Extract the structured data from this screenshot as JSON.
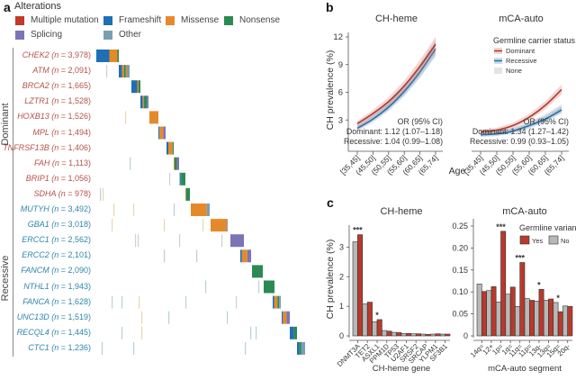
{
  "panel_a": {
    "letter": "a",
    "legend_title": "Alterations",
    "legend": [
      {
        "label": "Multiple mutation",
        "color": "#c0392b"
      },
      {
        "label": "Frameshift",
        "color": "#1f6fb4"
      },
      {
        "label": "Missense",
        "color": "#e58a2b"
      },
      {
        "label": "Nonsense",
        "color": "#2a8a52"
      },
      {
        "label": "Splicing",
        "color": "#7b74b7"
      },
      {
        "label": "Other",
        "color": "#7a9eb2"
      }
    ],
    "groups": [
      {
        "label": "Dominant",
        "color": "#b5524a"
      },
      {
        "label": "Recessive",
        "color": "#2e86ab"
      }
    ],
    "genes": [
      {
        "gene": "CHEK2",
        "n": "3,978",
        "group": "Dominant"
      },
      {
        "gene": "ATM",
        "n": "2,091",
        "group": "Dominant"
      },
      {
        "gene": "BRCA2",
        "n": "1,665",
        "group": "Dominant"
      },
      {
        "gene": "LZTR1",
        "n": "1,528",
        "group": "Dominant"
      },
      {
        "gene": "HOXB13",
        "n": "1,526",
        "group": "Dominant"
      },
      {
        "gene": "MPL",
        "n": "1,494",
        "group": "Dominant"
      },
      {
        "gene": "TNFRSF13B",
        "n": "1,406",
        "group": "Dominant"
      },
      {
        "gene": "FAH",
        "n": "1,113",
        "group": "Dominant"
      },
      {
        "gene": "BRIP1",
        "n": "1,056",
        "group": "Dominant"
      },
      {
        "gene": "SDHA",
        "n": "978",
        "group": "Dominant"
      },
      {
        "gene": "MUTYH",
        "n": "3,492",
        "group": "Recessive"
      },
      {
        "gene": "GBA1",
        "n": "3,018",
        "group": "Recessive"
      },
      {
        "gene": "ERCC1",
        "n": "2,562",
        "group": "Recessive"
      },
      {
        "gene": "ERCC2",
        "n": "2,101",
        "group": "Recessive"
      },
      {
        "gene": "FANCM",
        "n": "2,090",
        "group": "Recessive"
      },
      {
        "gene": "NTHL1",
        "n": "1,943",
        "group": "Recessive"
      },
      {
        "gene": "FANCA",
        "n": "1,628",
        "group": "Recessive"
      },
      {
        "gene": "UNC13D",
        "n": "1,519",
        "group": "Recessive"
      },
      {
        "gene": "RECQL4",
        "n": "1,445",
        "group": "Recessive"
      },
      {
        "gene": "CTC1",
        "n": "1,236",
        "group": "Recessive"
      }
    ],
    "blocks": [
      {
        "segs": [
          [
            "Frameshift",
            0.58
          ],
          [
            "Missense",
            0.36
          ],
          [
            "Nonsense",
            0.06
          ]
        ]
      },
      {
        "segs": [
          [
            "Frameshift",
            0.3
          ],
          [
            "Missense",
            0.2
          ],
          [
            "Nonsense",
            0.15
          ],
          [
            "Missense",
            0.1
          ],
          [
            "Other",
            0.25
          ]
        ]
      },
      {
        "segs": [
          [
            "Frameshift",
            0.65
          ],
          [
            "Missense",
            0.15
          ],
          [
            "Nonsense",
            0.2
          ]
        ]
      },
      {
        "segs": [
          [
            "Frameshift",
            0.3
          ],
          [
            "Missense",
            0.15
          ],
          [
            "Nonsense",
            0.35
          ],
          [
            "Splicing",
            0.2
          ]
        ]
      },
      {
        "segs": [
          [
            "Missense",
            1.0
          ]
        ]
      },
      {
        "segs": [
          [
            "Frameshift",
            0.15
          ],
          [
            "Missense",
            0.55
          ],
          [
            "Splicing",
            0.3
          ]
        ]
      },
      {
        "segs": [
          [
            "Frameshift",
            0.25
          ],
          [
            "Missense",
            0.6
          ],
          [
            "Nonsense",
            0.15
          ]
        ]
      },
      {
        "segs": [
          [
            "Missense",
            0.15
          ],
          [
            "Nonsense",
            0.45
          ],
          [
            "Splicing",
            0.4
          ]
        ]
      },
      {
        "segs": [
          [
            "Frameshift",
            0.3
          ],
          [
            "Nonsense",
            0.7
          ]
        ]
      },
      {
        "segs": [
          [
            "Missense",
            0.15
          ],
          [
            "Nonsense",
            0.85
          ]
        ]
      },
      {
        "segs": [
          [
            "Missense",
            0.85
          ],
          [
            "Other",
            0.15
          ]
        ]
      },
      {
        "segs": [
          [
            "Missense",
            0.95
          ],
          [
            "Other",
            0.05
          ]
        ]
      },
      {
        "segs": [
          [
            "Splicing",
            1.0
          ]
        ]
      },
      {
        "segs": [
          [
            "Frameshift",
            0.15
          ],
          [
            "Missense",
            0.5
          ],
          [
            "Splicing",
            0.35
          ]
        ]
      },
      {
        "segs": [
          [
            "Nonsense",
            1.0
          ]
        ]
      },
      {
        "segs": [
          [
            "Nonsense",
            1.0
          ]
        ]
      },
      {
        "segs": [
          [
            "Frameshift",
            0.2
          ],
          [
            "Missense",
            0.4
          ],
          [
            "Nonsense",
            0.2
          ],
          [
            "Other",
            0.2
          ]
        ]
      },
      {
        "segs": [
          [
            "Frameshift",
            0.15
          ],
          [
            "Missense",
            0.45
          ],
          [
            "Splicing",
            0.4
          ]
        ]
      },
      {
        "segs": [
          [
            "Frameshift",
            0.6
          ],
          [
            "Nonsense",
            0.4
          ]
        ]
      },
      {
        "segs": [
          [
            "Frameshift",
            0.3
          ],
          [
            "Nonsense",
            0.2
          ],
          [
            "Other",
            0.5
          ]
        ]
      }
    ]
  },
  "panel_b": {
    "letter": "b",
    "ylabel": "CH prevalence (%)",
    "xlabel": "Age",
    "legend_title": "Germline carrier status",
    "legend": [
      {
        "label": "Dominant",
        "color": "#b03a2e"
      },
      {
        "label": "Recessive",
        "color": "#2e6da4"
      },
      {
        "label": "None",
        "color": "#e3e3e3"
      }
    ]
  },
  "panel_c": {
    "letter": "c",
    "legend_title": "Germline variant",
    "legend": [
      {
        "label": "Yes",
        "color": "#b83a2c"
      },
      {
        "label": "No",
        "color": "#b8b8b8"
      }
    ]
  },
  "chart_data": [
    {
      "type": "line",
      "panel": "b",
      "title": "CH-heme",
      "xlabel": "Age",
      "ylabel": "CH prevalence (%)",
      "x": [
        "[35,45]",
        "(45,50]",
        "(50,55]",
        "(55,60]",
        "(60,65]",
        "(65,74]"
      ],
      "ylim": [
        0,
        12
      ],
      "yticks": [
        3,
        6,
        9,
        12
      ],
      "series": [
        {
          "name": "Dominant",
          "values": [
            2.6,
            3.7,
            5.0,
            6.7,
            8.8,
            11.2
          ]
        },
        {
          "name": "Recessive",
          "values": [
            2.1,
            3.1,
            4.4,
            6.1,
            8.2,
            10.7
          ]
        },
        {
          "name": "None",
          "values": [
            2.2,
            3.3,
            4.6,
            6.3,
            8.4,
            10.9
          ]
        }
      ],
      "annotation": [
        "OR (95% CI)",
        "Dominant: 1.12 (1.07–1.18)",
        "Recessive: 1.04 (0.99–1.08)"
      ]
    },
    {
      "type": "line",
      "panel": "b",
      "title": "mCA-auto",
      "xlabel": "Age",
      "ylabel": "",
      "x": [
        "[35,45]",
        "(45,50]",
        "(50,55]",
        "(55,60]",
        "(60,65]",
        "(65,74]"
      ],
      "ylim": [
        0,
        12
      ],
      "series": [
        {
          "name": "Dominant",
          "values": [
            1.7,
            1.9,
            2.4,
            3.3,
            4.6,
            6.3
          ]
        },
        {
          "name": "Recessive",
          "values": [
            1.4,
            1.5,
            1.8,
            2.4,
            3.1,
            4.1
          ]
        },
        {
          "name": "None",
          "values": [
            1.5,
            1.6,
            1.9,
            2.5,
            3.3,
            4.3
          ]
        }
      ],
      "legend_title": "Germline carrier status",
      "legend_position": "top-right",
      "annotation": [
        "OR (95% CI)",
        "Dominant: 1.34 (1.27–1.42)",
        "Recessive: 0.99 (0.93–1.05)"
      ]
    },
    {
      "type": "bar",
      "panel": "c",
      "title": "CH-heme",
      "xlabel": "CH-heme gene",
      "ylabel": "CH prevalence (%)",
      "categories": [
        "DNMT3A",
        "TET2",
        "ASXL1",
        "PPM1D",
        "TP53",
        "U2AF1",
        "SRSF2",
        "SRCAP",
        "YLPM1",
        "SF3B1"
      ],
      "ylim": [
        0,
        3.5
      ],
      "yticks": [
        0,
        1,
        2,
        3
      ],
      "series": [
        {
          "name": "No",
          "values": [
            3.18,
            1.08,
            0.48,
            0.18,
            0.12,
            0.08,
            0.07,
            0.06,
            0.06,
            0.06
          ]
        },
        {
          "name": "Yes",
          "values": [
            3.42,
            1.14,
            0.55,
            0.16,
            0.11,
            0.08,
            0.07,
            0.05,
            0.07,
            0.06
          ]
        }
      ],
      "significance": {
        "DNMT3A": "***",
        "ASXL1": "*"
      }
    },
    {
      "type": "bar",
      "panel": "c",
      "title": "mCA-auto",
      "xlabel": "mCA-auto segment",
      "ylabel": "",
      "categories": [
        "14q=",
        "12+",
        "1p=",
        "1q=",
        "11q=",
        "11p=",
        "13q-",
        "13q=",
        "15q=",
        "20q-"
      ],
      "ylim": [
        0,
        0.25
      ],
      "yticks": [
        0,
        0.05,
        0.1,
        0.15,
        0.2,
        0.25
      ],
      "ytick_labels": [
        "0",
        "0.05",
        "0.10",
        "0.15",
        "0.20",
        "0.25"
      ],
      "series": [
        {
          "name": "No",
          "values": [
            0.118,
            0.103,
            0.077,
            0.095,
            0.067,
            0.085,
            0.079,
            0.081,
            0.076,
            0.068
          ]
        },
        {
          "name": "Yes",
          "values": [
            0.101,
            0.112,
            0.238,
            0.111,
            0.167,
            0.081,
            0.106,
            0.084,
            0.055,
            0.067
          ]
        }
      ],
      "significance": {
        "1p=": "***",
        "11q=": "***",
        "13q-": "*",
        "15q=": "*"
      },
      "legend_title": "Germline variant",
      "legend_position": "top-right"
    }
  ]
}
